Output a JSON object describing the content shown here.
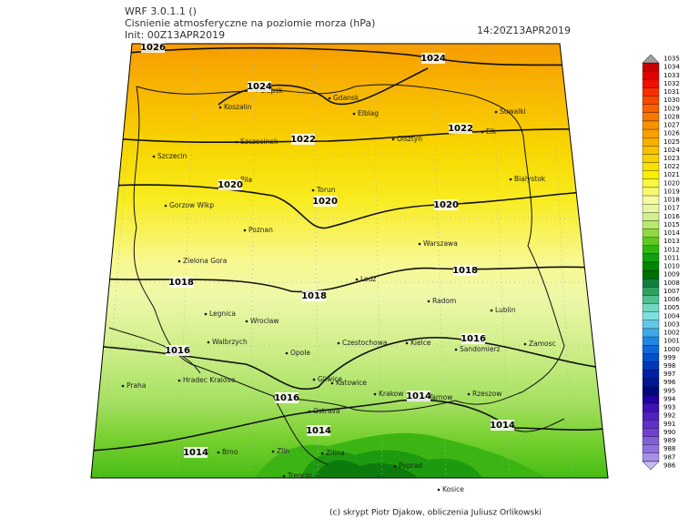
{
  "header": {
    "model": "WRF 3.0.1.1 ()",
    "title": "Cisnienie atmosferyczne na poziomie morza (hPa)",
    "init": "Init: 00Z13APR2019",
    "valid": "14:20Z13APR2019"
  },
  "cities": [
    "Slupsk",
    "Gdansk",
    "Koszalin",
    "Elblag",
    "Suwalki",
    "Elk",
    "Szczecinek",
    "Olsztyn",
    "Szczecin",
    "Bialystok",
    "Pila",
    "Torun",
    "Gorzow Wlkp",
    "Poznan",
    "Warszawa",
    "Zielona Gora",
    "Lodz",
    "Radom",
    "Lublin",
    "Legnica",
    "Wroclaw",
    "Walbrzych",
    "Opole",
    "Czestochowa",
    "Kielce",
    "Sandomierz",
    "Zamosc",
    "Praha",
    "Hradec Kralove",
    "Gliwice",
    "Katowice",
    "Krakow",
    "Tarnow",
    "Rzeszow",
    "Ostrava",
    "Brno",
    "Zlin",
    "Zilina",
    "Poprad",
    "Kosice",
    "Trencin"
  ],
  "contour_labels": [
    1026,
    1024,
    1024,
    1022,
    1022,
    1020,
    1020,
    1020,
    1018,
    1018,
    1018,
    1016,
    1016,
    1016,
    1014,
    1014,
    1014,
    1014
  ],
  "colorbar": {
    "levels": [
      1035,
      1034,
      1033,
      1032,
      1031,
      1030,
      1029,
      1028,
      1027,
      1026,
      1025,
      1024,
      1023,
      1022,
      1021,
      1020,
      1019,
      1018,
      1017,
      1016,
      1015,
      1014,
      1013,
      1012,
      1011,
      1010,
      1009,
      1008,
      1007,
      1006,
      1005,
      1004,
      1003,
      1002,
      1001,
      1000,
      999,
      998,
      997,
      996,
      995,
      994,
      993,
      992,
      991,
      990,
      989,
      988,
      987,
      986
    ],
    "colors": [
      "#a0a0a0",
      "#c80000",
      "#e00000",
      "#f01000",
      "#f83000",
      "#f84800",
      "#f86000",
      "#f87800",
      "#f89000",
      "#f8a000",
      "#f8b000",
      "#f8c000",
      "#f8d000",
      "#f8e000",
      "#f8f000",
      "#f8f840",
      "#f8f870",
      "#f8f8a0",
      "#e8f8a0",
      "#d0f090",
      "#b8e870",
      "#90d840",
      "#60c820",
      "#30b810",
      "#10a010",
      "#008800",
      "#007000",
      "#108040",
      "#30a060",
      "#50c090",
      "#70d8c0",
      "#80e0e0",
      "#60c8e8",
      "#40a8e8",
      "#2088e0",
      "#1068d8",
      "#0050c8",
      "#0038b8",
      "#0020a8",
      "#001898",
      "#000880",
      "#2000a0",
      "#4010b0",
      "#5020c0",
      "#6030c8",
      "#7040d0",
      "#8060d8",
      "#9070e0",
      "#a890e8",
      "#c8b8f0"
    ]
  },
  "footer": "(c) skrypt Piotr Djakow, obliczenia Juliusz Orlikowski"
}
